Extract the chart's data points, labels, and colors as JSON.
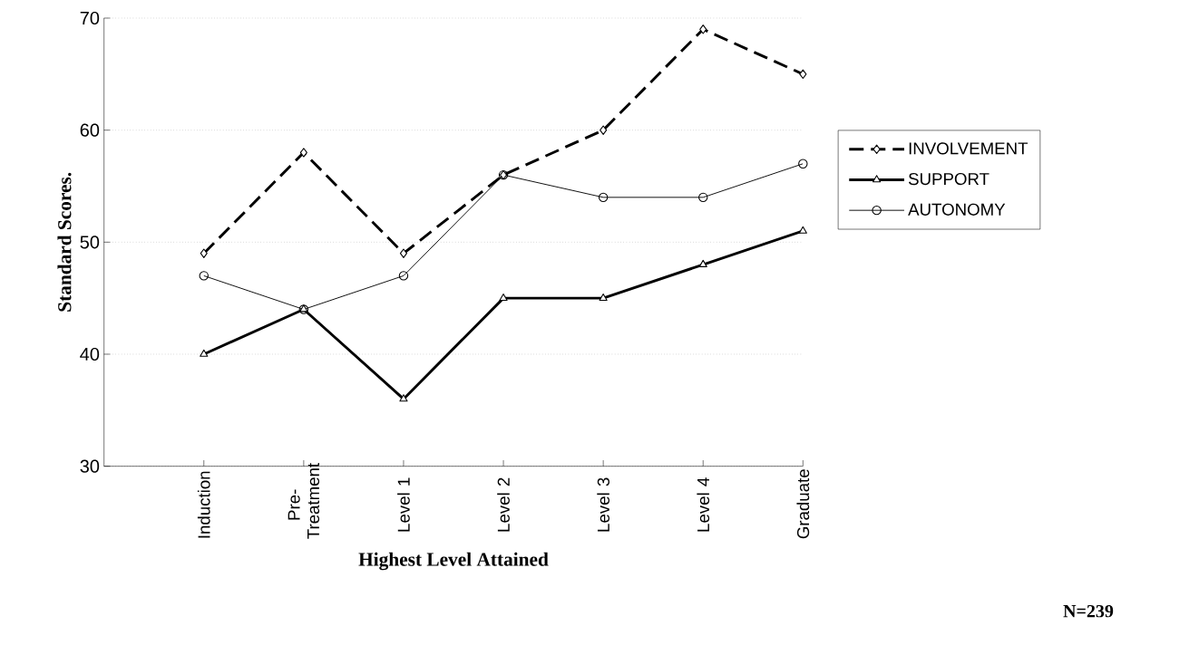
{
  "chart_data": {
    "type": "line",
    "xlabel": "Highest Level Attained",
    "ylabel": "Standard Scores.",
    "categories": [
      "Induction",
      "Pre-Treatment",
      "Level 1",
      "Level 2",
      "Level 3",
      "Level 4",
      "Graduate"
    ],
    "series": [
      {
        "name": "INVOLVEMENT",
        "color": "#000000",
        "values": [
          49,
          58,
          49,
          56,
          60,
          69,
          65
        ],
        "marker": "diamond",
        "line_style": "dashed"
      },
      {
        "name": "SUPPORT",
        "color": "#000000",
        "values": [
          40,
          44,
          36,
          45,
          45,
          48,
          51
        ],
        "marker": "triangle",
        "line_style": "solid"
      },
      {
        "name": "AUTONOMY",
        "color": "#000000",
        "values": [
          47,
          44,
          47,
          56,
          54,
          54,
          57
        ],
        "marker": "circle",
        "line_style": "solid"
      }
    ],
    "ylim": [
      30,
      70
    ],
    "yticks": [
      30,
      40,
      50,
      60,
      70
    ],
    "grid": "y",
    "legend": "right",
    "annotations": [
      "N=239"
    ]
  }
}
